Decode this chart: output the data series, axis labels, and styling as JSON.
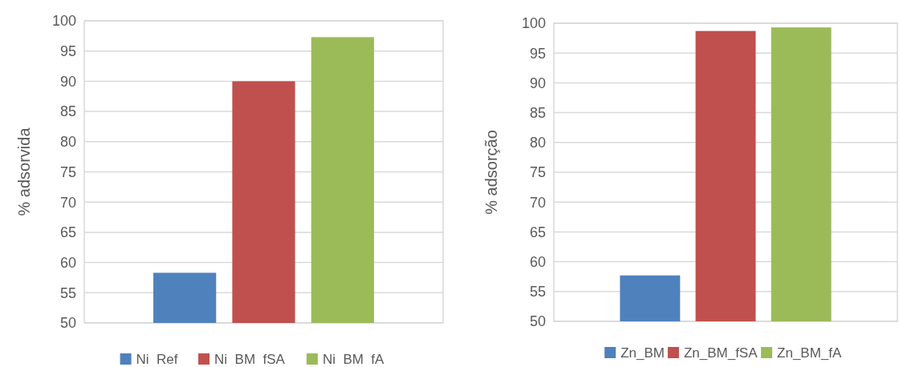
{
  "chart_data": [
    {
      "type": "bar",
      "ylabel": "% adsorvida",
      "categories": [
        null
      ],
      "ylim": [
        50,
        100
      ],
      "yticks": [
        50,
        55,
        60,
        65,
        70,
        75,
        80,
        85,
        90,
        95,
        100
      ],
      "grid": "y",
      "legend": "bottom",
      "series": [
        {
          "name": "Ni  Ref",
          "color": "#4f81bd",
          "values": [
            58.3
          ]
        },
        {
          "name": "Ni  BM  fSA",
          "color": "#c0504d",
          "values": [
            90.0
          ]
        },
        {
          "name": "Ni  BM  fA",
          "color": "#9bbb59",
          "values": [
            97.3
          ]
        }
      ]
    },
    {
      "type": "bar",
      "ylabel": "% adsorção",
      "categories": [
        null
      ],
      "ylim": [
        50,
        100
      ],
      "yticks": [
        50,
        55,
        60,
        65,
        70,
        75,
        80,
        85,
        90,
        95,
        100
      ],
      "grid": "y",
      "legend": "bottom",
      "series": [
        {
          "name": "Zn_BM",
          "color": "#4f81bd",
          "values": [
            57.7
          ]
        },
        {
          "name": "Zn_BM_fSA",
          "color": "#c0504d",
          "values": [
            98.7
          ]
        },
        {
          "name": "Zn_BM_fA",
          "color": "#9bbb59",
          "values": [
            99.3
          ]
        }
      ]
    }
  ]
}
